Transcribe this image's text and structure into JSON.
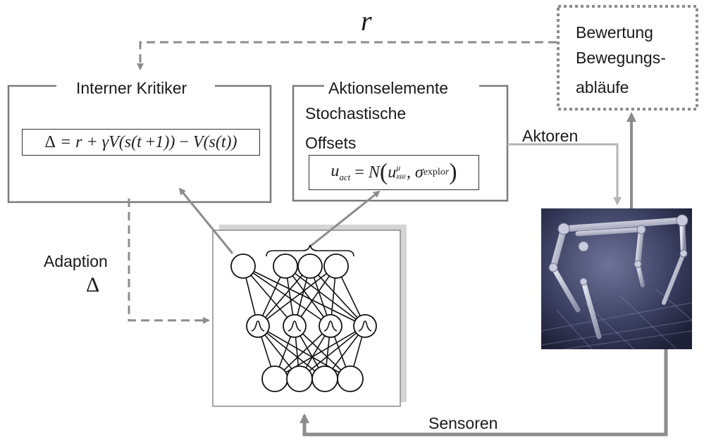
{
  "title_reward": "r",
  "critic": {
    "title": "Interner Kritiker",
    "formula_plain": "Δ = r + γV(s(t+1)) − V(s(t))"
  },
  "actions": {
    "title": "Aktionselemente",
    "line1": "Stochastische",
    "line2": "Offsets",
    "formula_plain": "u_act = N(u^μ_RBF, σ_explor)"
  },
  "evaluation": {
    "line1": "Bewertung",
    "line2": "Bewegungs-",
    "line3": "abläufe"
  },
  "adaption": {
    "label": "Adaption",
    "symbol": "Δ"
  },
  "actuators_label": "Aktoren",
  "sensors_label": "Sensoren",
  "colors": {
    "arrow_gray": "#8c8c8c",
    "light_gray": "#b5b5b5",
    "box_border": "#7a7a7a",
    "robot_bg": "#3b3f5c"
  },
  "network": {
    "input_nodes": 4,
    "hidden_nodes": 4,
    "output_nodes": 4
  }
}
